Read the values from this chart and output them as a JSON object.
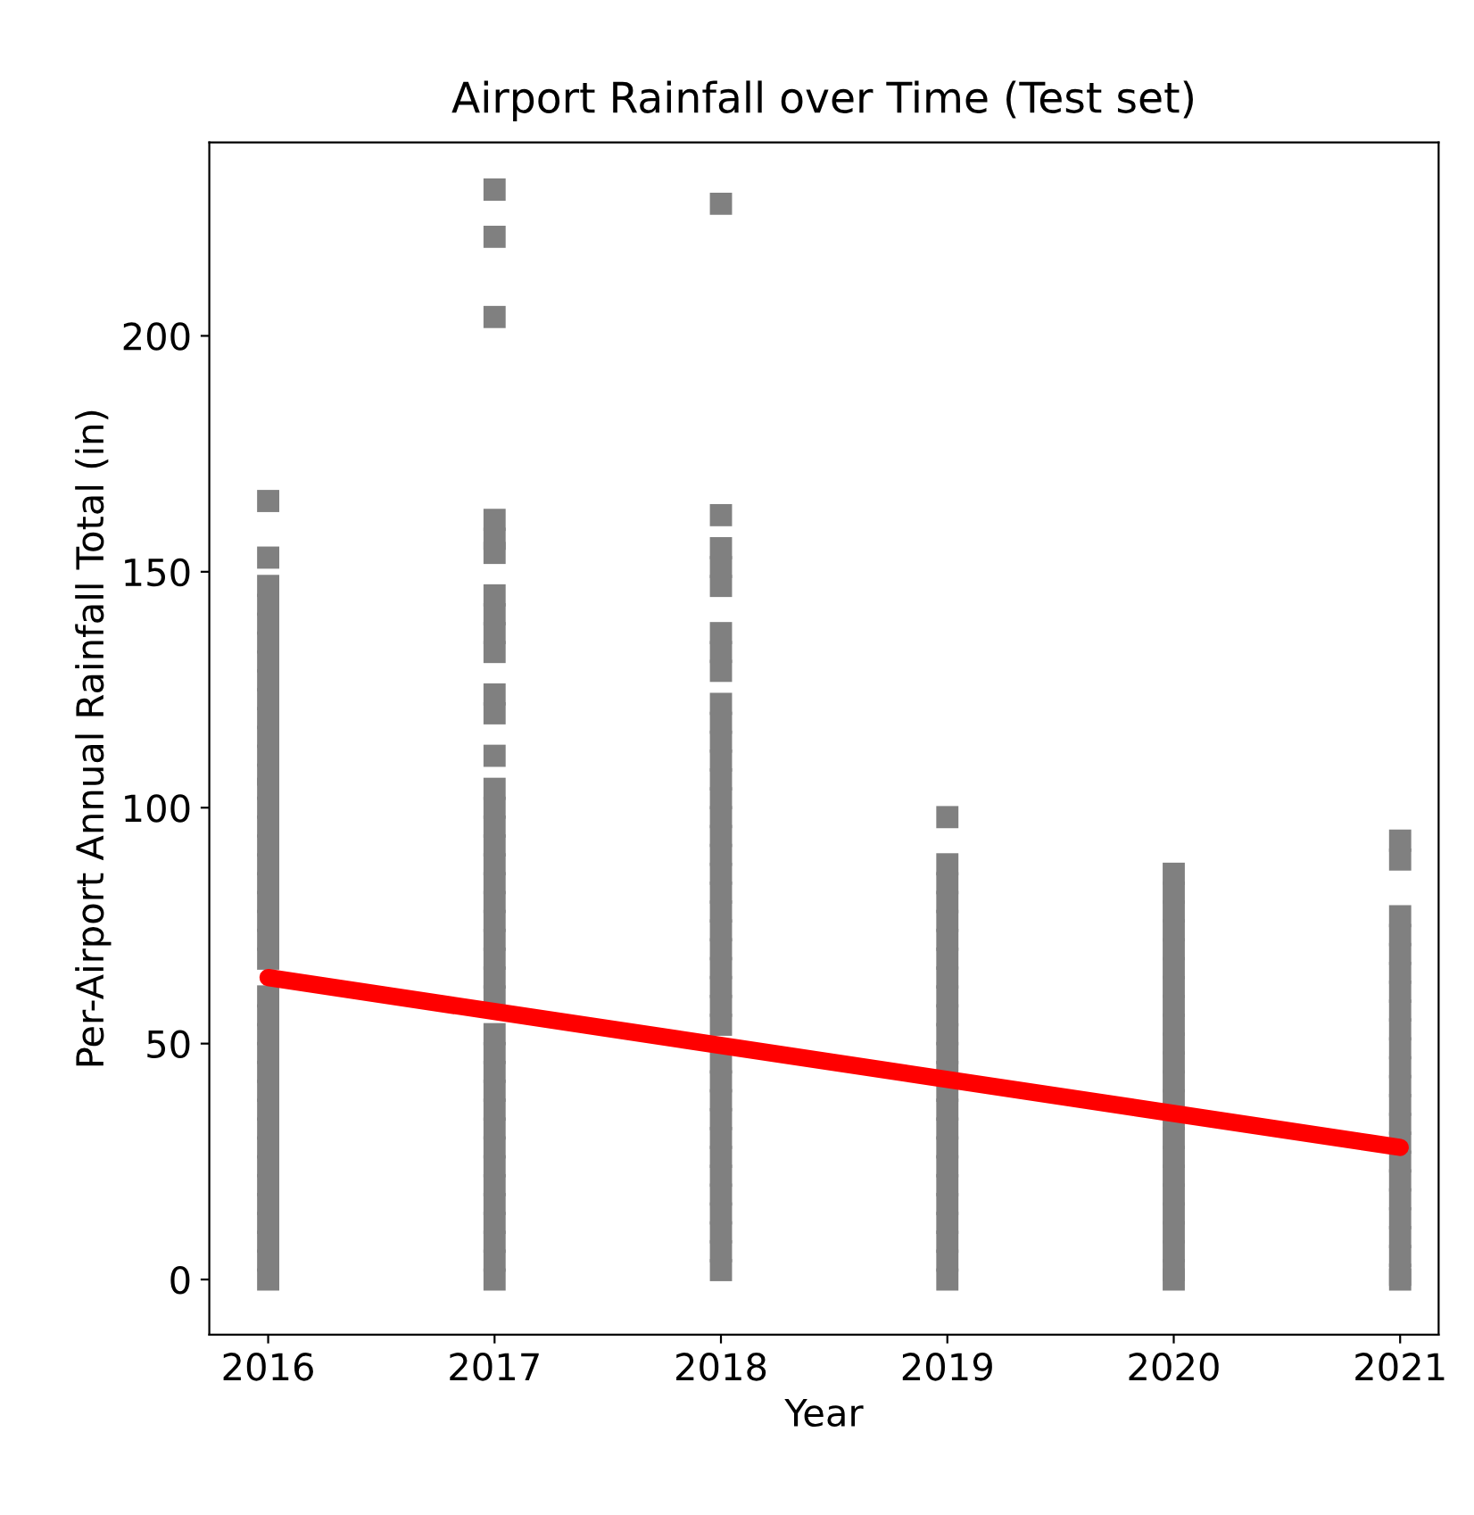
{
  "chart_data": {
    "type": "scatter",
    "title": "Airport Rainfall over Time (Test set)",
    "xlabel": "Year",
    "ylabel": "Per-Airport Annual Rainfall Total (in)",
    "xlim": [
      2015.74,
      2021.17
    ],
    "xticks": [
      2016,
      2017,
      2018,
      2019,
      2020,
      2021
    ],
    "ylim": [
      -11.7,
      241
    ],
    "yticks": [
      0,
      50,
      100,
      150,
      200
    ],
    "grid": false,
    "legend": false,
    "series": [
      {
        "color": "#808080",
        "marker": "square",
        "x": [
          2016,
          2016,
          2016,
          2016,
          2016,
          2016,
          2016,
          2016,
          2016,
          2016,
          2016,
          2016,
          2016,
          2016,
          2016,
          2016,
          2016,
          2016,
          2016,
          2016,
          2016,
          2016,
          2016,
          2016,
          2016,
          2016,
          2016,
          2016,
          2016,
          2016,
          2016,
          2016,
          2016,
          2016,
          2016,
          2016,
          2016,
          2016,
          2016,
          2017,
          2017,
          2017,
          2017,
          2017,
          2017,
          2017,
          2017,
          2017,
          2017,
          2017,
          2017,
          2017,
          2017,
          2017,
          2017,
          2017,
          2017,
          2017,
          2017,
          2017,
          2017,
          2017,
          2017,
          2017,
          2017,
          2017,
          2017,
          2017,
          2017,
          2017,
          2017,
          2017,
          2017,
          2017,
          2017,
          2017,
          2017,
          2017,
          2018,
          2018,
          2018,
          2018,
          2018,
          2018,
          2018,
          2018,
          2018,
          2018,
          2018,
          2018,
          2018,
          2018,
          2018,
          2018,
          2018,
          2018,
          2018,
          2018,
          2018,
          2018,
          2018,
          2018,
          2018,
          2018,
          2018,
          2018,
          2018,
          2018,
          2018,
          2018,
          2018,
          2018,
          2018,
          2018,
          2018,
          2018,
          2019,
          2019,
          2019,
          2019,
          2019,
          2019,
          2019,
          2019,
          2019,
          2019,
          2019,
          2019,
          2019,
          2019,
          2019,
          2019,
          2019,
          2019,
          2019,
          2019,
          2019,
          2019,
          2019,
          2019,
          2020,
          2020,
          2020,
          2020,
          2020,
          2020,
          2020,
          2020,
          2020,
          2020,
          2020,
          2020,
          2020,
          2020,
          2020,
          2020,
          2020,
          2020,
          2020,
          2020,
          2020,
          2020,
          2020,
          2021,
          2021,
          2021,
          2021,
          2021,
          2021,
          2021,
          2021,
          2021,
          2021,
          2021,
          2021,
          2021,
          2021,
          2021,
          2021,
          2021,
          2021,
          2021,
          2021,
          2021,
          2021,
          2021
        ],
        "values": [
          165,
          153,
          147,
          143,
          139,
          135,
          131,
          127,
          123,
          119,
          115,
          111,
          107,
          104,
          100,
          96,
          92,
          88,
          84,
          80,
          76,
          72,
          68,
          60,
          56,
          52,
          48,
          44,
          40,
          36,
          32,
          28,
          24,
          20,
          16,
          12,
          8,
          4,
          0,
          231,
          221,
          204,
          161,
          157,
          154,
          145,
          141,
          137,
          133,
          124,
          120,
          111,
          104,
          100,
          96,
          92,
          88,
          84,
          80,
          76,
          72,
          68,
          64,
          60,
          52,
          48,
          44,
          40,
          36,
          32,
          28,
          24,
          20,
          16,
          12,
          8,
          4,
          0,
          228,
          162,
          155,
          151,
          147,
          137,
          133,
          129,
          122,
          118,
          114,
          110,
          106,
          102,
          98,
          94,
          90,
          86,
          82,
          78,
          74,
          70,
          66,
          62,
          58,
          54,
          46,
          42,
          38,
          34,
          30,
          26,
          22,
          18,
          14,
          10,
          6,
          2,
          98,
          88,
          84,
          80,
          76,
          72,
          68,
          64,
          60,
          56,
          52,
          48,
          44,
          40,
          36,
          32,
          28,
          24,
          20,
          16,
          12,
          8,
          4,
          0,
          86,
          82,
          78,
          74,
          70,
          66,
          62,
          58,
          54,
          50,
          46,
          42,
          38,
          34,
          30,
          26,
          22,
          18,
          14,
          10,
          6,
          2,
          0,
          93,
          89,
          77,
          73,
          69,
          65,
          61,
          57,
          53,
          49,
          45,
          41,
          37,
          33,
          29,
          25,
          21,
          17,
          13,
          9,
          5,
          1,
          0
        ]
      },
      {
        "type": "line",
        "color": "#ff0000",
        "marker": "none",
        "line_style": "solid",
        "x": [
          2016,
          2021
        ],
        "values": [
          64,
          28
        ]
      }
    ]
  }
}
